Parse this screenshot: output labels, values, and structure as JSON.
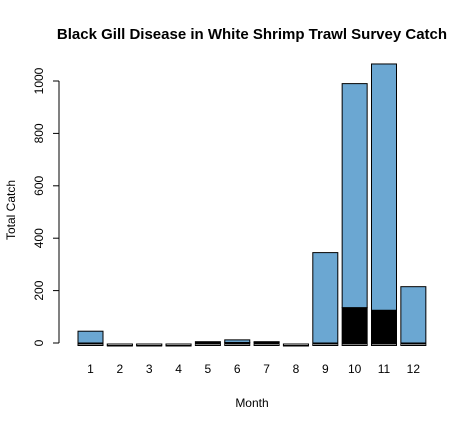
{
  "chart_data": {
    "type": "bar",
    "stacked": true,
    "title": "Black Gill Disease in White Shrimp Trawl Survey Catch",
    "xlabel": "Month",
    "ylabel": "Total Catch",
    "categories": [
      "1",
      "2",
      "3",
      "4",
      "5",
      "6",
      "7",
      "8",
      "9",
      "10",
      "11",
      "12"
    ],
    "series": [
      {
        "color": "#000000",
        "values": [
          0,
          0,
          0,
          0,
          5,
          2,
          3,
          0,
          0,
          135,
          125,
          0
        ]
      },
      {
        "color": "#6ba7d2",
        "values": [
          45,
          0,
          0,
          0,
          0,
          10,
          2,
          0,
          345,
          855,
          940,
          215
        ]
      }
    ],
    "totals": [
      45,
      0,
      0,
      0,
      5,
      12,
      5,
      0,
      345,
      990,
      1065,
      215
    ],
    "yticks": [
      0,
      200,
      400,
      600,
      800,
      1000
    ],
    "ylim": [
      0,
      1080
    ],
    "grid": false,
    "legend": "none"
  }
}
